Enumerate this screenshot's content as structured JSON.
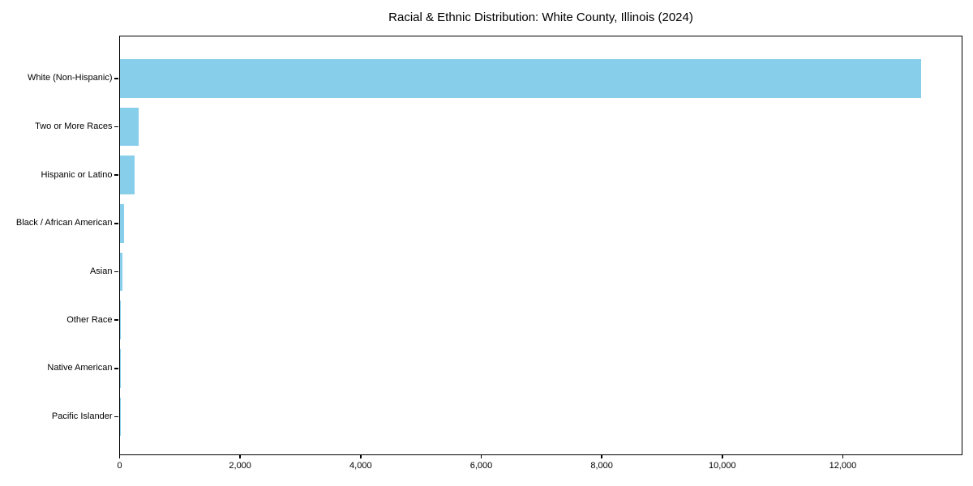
{
  "chart_data": {
    "type": "bar",
    "orientation": "horizontal",
    "title": "Racial & Ethnic Distribution: White County, Illinois (2024)",
    "categories": [
      "White (Non-Hispanic)",
      "Two or More Races",
      "Hispanic or Latino",
      "Black / African American",
      "Asian",
      "Other Race",
      "Native American",
      "Pacific Islander"
    ],
    "values": [
      13300,
      315,
      245,
      80,
      45,
      12,
      6,
      2
    ],
    "xlabel": "",
    "ylabel": "",
    "xlim": [
      0,
      13965
    ],
    "xticks": [
      0,
      2000,
      4000,
      6000,
      8000,
      10000,
      12000
    ],
    "xtick_labels": [
      "0",
      "2,000",
      "4,000",
      "6,000",
      "8,000",
      "10,000",
      "12,000"
    ],
    "bar_color": "#87CEEB",
    "axis_color": "#000000",
    "text_color": "#000000",
    "background": "#FFFFFF",
    "grid": false,
    "legend": null
  }
}
